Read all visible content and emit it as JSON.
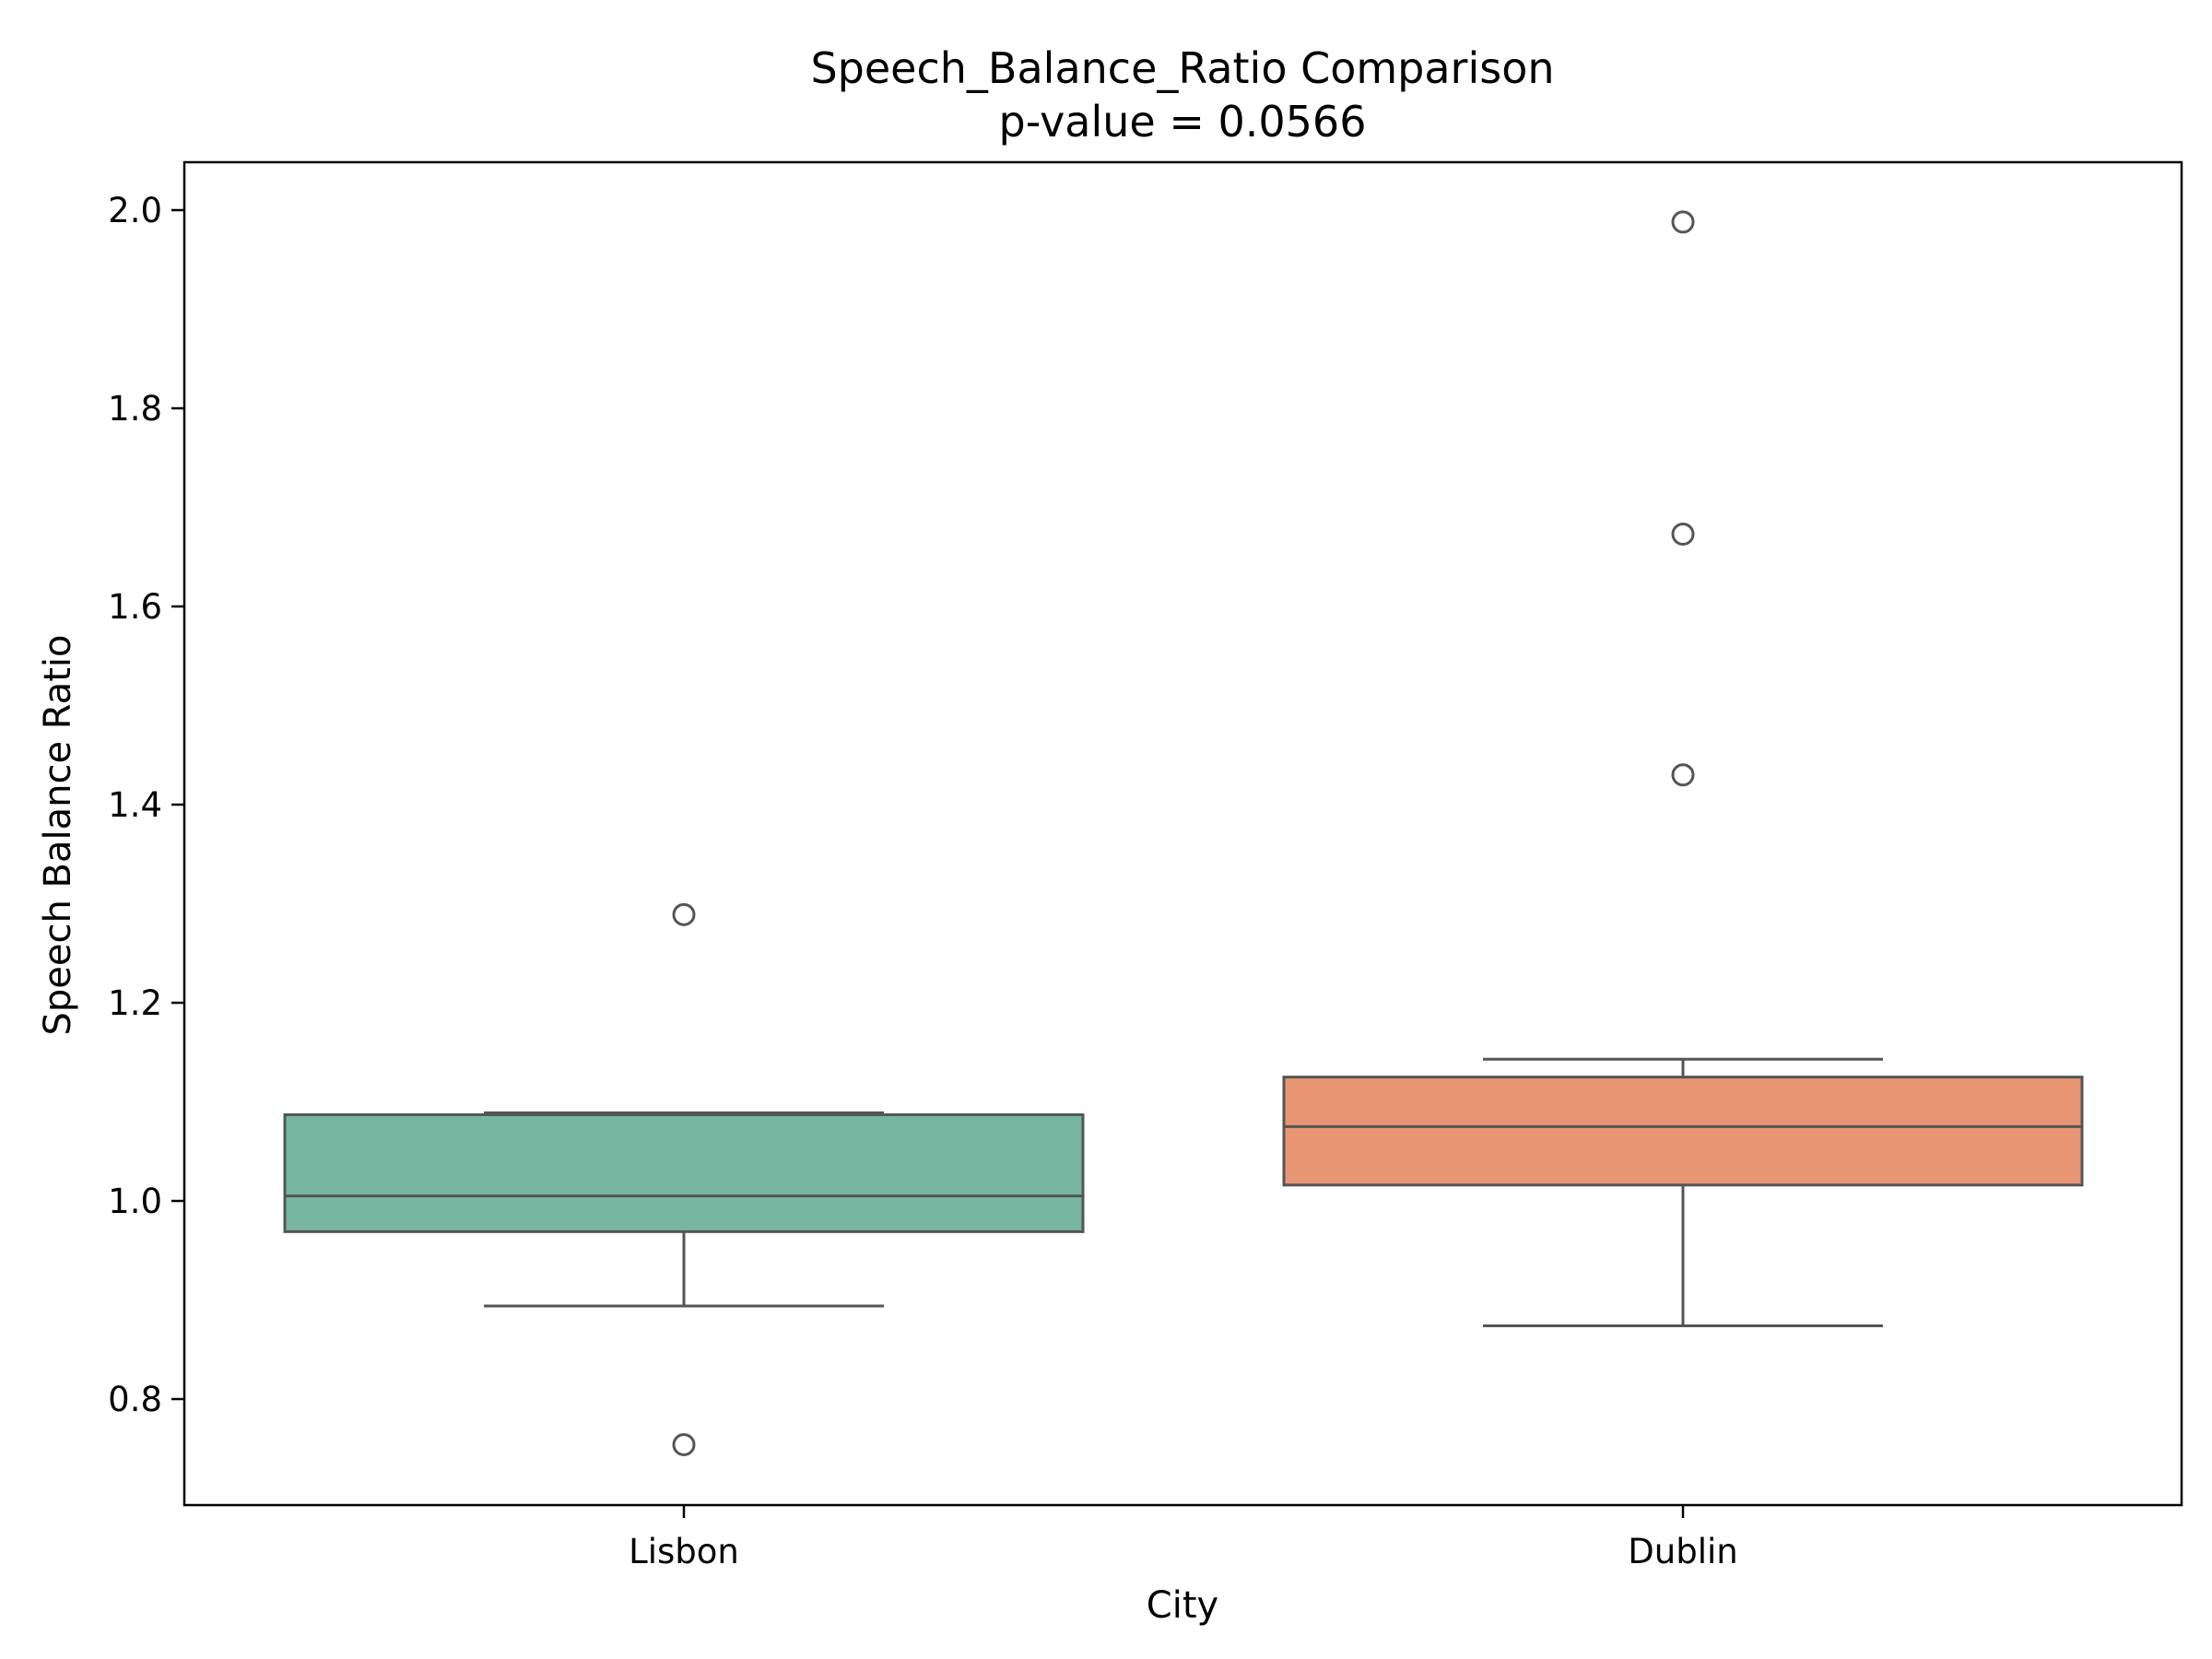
{
  "chart_data": {
    "type": "box",
    "title": "Speech_Balance_Ratio Comparison",
    "subtitle": "p-value = 0.0566",
    "xlabel": "City",
    "ylabel": "Speech Balance Ratio",
    "ylim": [
      0.69,
      2.05
    ],
    "yticks": [
      "0.8",
      "1.0",
      "1.2",
      "1.4",
      "1.6",
      "1.8",
      "2.0"
    ],
    "categories": [
      "Lisbon",
      "Dublin"
    ],
    "colors": [
      "#76b6a1",
      "#e89674"
    ],
    "line_color": "#555555",
    "boxes": [
      {
        "name": "Lisbon",
        "whisker_low": 0.894,
        "q1": 0.969,
        "median": 1.005,
        "q3": 1.087,
        "whisker_high": 1.089,
        "outliers": [
          1.289,
          0.754
        ]
      },
      {
        "name": "Dublin",
        "whisker_low": 0.874,
        "q1": 1.016,
        "median": 1.075,
        "q3": 1.125,
        "whisker_high": 1.143,
        "outliers": [
          1.988,
          1.673,
          1.43
        ]
      }
    ]
  }
}
